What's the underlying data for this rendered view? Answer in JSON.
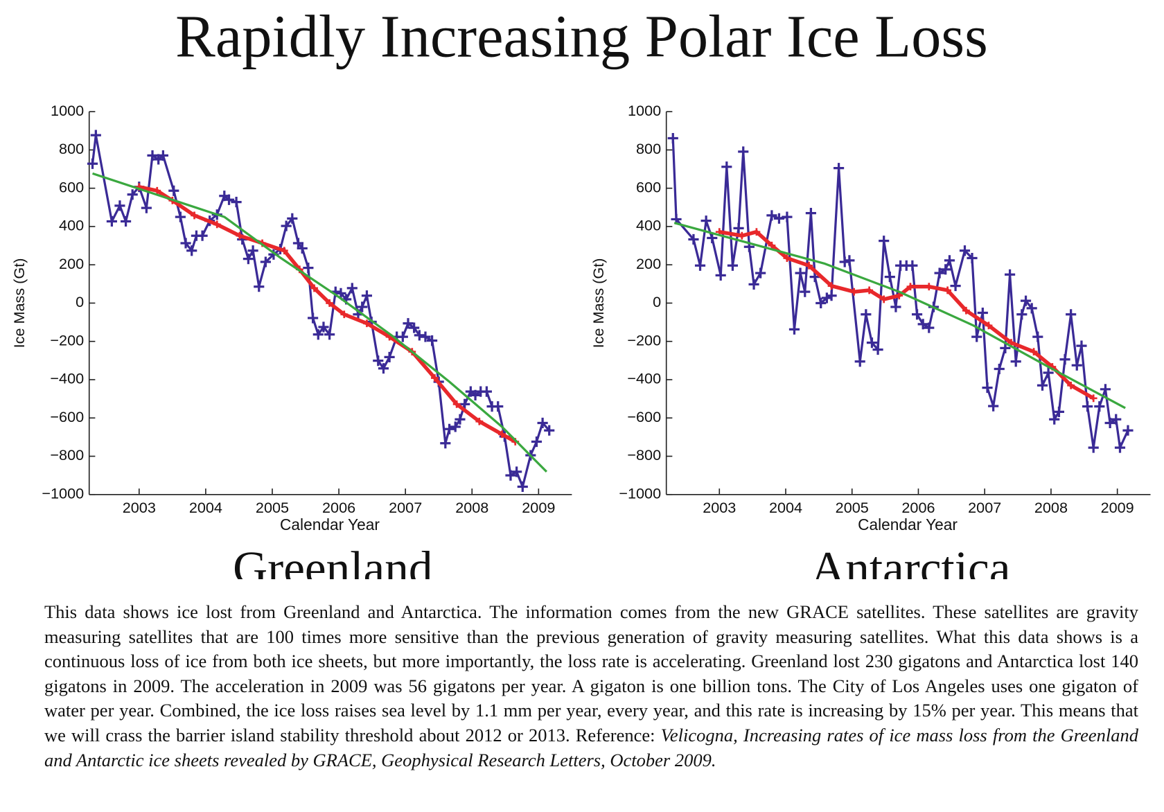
{
  "title": "Rapidly Increasing Polar Ice Loss",
  "chart_data": [
    {
      "type": "line",
      "title": "Greenland",
      "xlabel": "Calendar Year",
      "ylabel": "Ice Mass (Gt)",
      "xlim": [
        2002.25,
        2009.5
      ],
      "ylim": [
        -1000,
        1000
      ],
      "xticks": [
        2003,
        2004,
        2005,
        2006,
        2007,
        2008,
        2009
      ],
      "yticks": [
        {
          "value": -1000,
          "label": "−1000"
        },
        {
          "value": -800,
          "label": "−800"
        },
        {
          "value": -600,
          "label": "−600"
        },
        {
          "value": -400,
          "label": "−400"
        },
        {
          "value": -200,
          "label": "−200"
        },
        0,
        200,
        400,
        600,
        800,
        1000
      ],
      "series": [
        {
          "color": "#3a2a96",
          "marker": "plus",
          "x": [
            2002.3,
            2002.35,
            2002.59,
            2002.71,
            2002.8,
            2002.9,
            2003.0,
            2003.11,
            2003.2,
            2003.29,
            2003.36,
            2003.52,
            2003.62,
            2003.7,
            2003.79,
            2003.86,
            2003.95,
            2004.06,
            2004.17,
            2004.28,
            2004.35,
            2004.46,
            2004.55,
            2004.64,
            2004.71,
            2004.8,
            2004.9,
            2005.02,
            2005.12,
            2005.21,
            2005.3,
            2005.39,
            2005.45,
            2005.54,
            2005.61,
            2005.69,
            2005.77,
            2005.86,
            2005.95,
            2006.03,
            2006.11,
            2006.2,
            2006.29,
            2006.35,
            2006.42,
            2006.49,
            2006.59,
            2006.67,
            2006.76,
            2006.87,
            2006.96,
            2007.04,
            2007.13,
            2007.21,
            2007.3,
            2007.4,
            2007.5,
            2007.6,
            2007.66,
            2007.75,
            2007.82,
            2007.89,
            2007.98,
            2008.05,
            2008.13,
            2008.22,
            2008.3,
            2008.39,
            2008.49,
            2008.58,
            2008.67,
            2008.76,
            2008.88,
            2008.97,
            2009.06,
            2009.16
          ],
          "values": [
            728,
            877,
            427,
            509,
            427,
            567,
            607,
            497,
            771,
            751,
            771,
            587,
            450,
            313,
            274,
            352,
            352,
            430,
            462,
            560,
            540,
            528,
            333,
            231,
            274,
            86,
            215,
            254,
            282,
            403,
            442,
            313,
            286,
            184,
            -78,
            -164,
            -125,
            -164,
            59,
            51,
            20,
            78,
            -59,
            -20,
            39,
            -98,
            -301,
            -341,
            -282,
            -176,
            -176,
            -106,
            -129,
            -168,
            -176,
            -196,
            -411,
            -732,
            -658,
            -646,
            -607,
            -528,
            -462,
            -481,
            -462,
            -462,
            -540,
            -540,
            -697,
            -900,
            -881,
            -959,
            -795,
            -724,
            -626,
            -665
          ]
        },
        {
          "color": "#e8282b",
          "marker": "plus",
          "x": [
            2003.0,
            2003.27,
            2003.5,
            2003.83,
            2004.17,
            2004.51,
            2004.85,
            2005.18,
            2005.41,
            2005.63,
            2005.86,
            2006.08,
            2006.42,
            2006.76,
            2007.1,
            2007.44,
            2007.77,
            2008.11,
            2008.45,
            2008.65
          ],
          "values": [
            607,
            587,
            536,
            458,
            411,
            352,
            313,
            274,
            176,
            78,
            0,
            -59,
            -106,
            -176,
            -254,
            -391,
            -528,
            -618,
            -685,
            -724
          ]
        },
        {
          "color": "#3aa83f",
          "x": [
            2002.3,
            2004.28,
            2005.13,
            2005.97,
            2006.82,
            2007.66,
            2008.45,
            2009.12
          ],
          "values": [
            677,
            450,
            235,
            39,
            -176,
            -411,
            -646,
            -881
          ]
        }
      ]
    },
    {
      "type": "line",
      "title": "Antarctica",
      "xlabel": "Calendar Year",
      "ylabel": "Ice Mass (Gt)",
      "xlim": [
        2002.2,
        2009.5
      ],
      "ylim": [
        -1000,
        1000
      ],
      "xticks": [
        2003,
        2004,
        2005,
        2006,
        2007,
        2008,
        2009
      ],
      "yticks": [
        {
          "value": -1000,
          "label": "−1000"
        },
        {
          "value": -800,
          "label": "−800"
        },
        {
          "value": -600,
          "label": "−600"
        },
        {
          "value": -400,
          "label": "−400"
        },
        {
          "value": -200,
          "label": "−200"
        },
        0,
        200,
        400,
        600,
        800,
        1000
      ],
      "series": [
        {
          "color": "#3a2a96",
          "marker": "plus",
          "x": [
            2002.3,
            2002.35,
            2002.61,
            2002.71,
            2002.8,
            2002.89,
            2003.02,
            2003.11,
            2003.2,
            2003.29,
            2003.36,
            2003.45,
            2003.52,
            2003.62,
            2003.79,
            2003.9,
            2004.02,
            2004.13,
            2004.22,
            2004.29,
            2004.38,
            2004.44,
            2004.53,
            2004.62,
            2004.69,
            2004.8,
            2004.89,
            2004.96,
            2005.12,
            2005.21,
            2005.3,
            2005.39,
            2005.48,
            2005.57,
            2005.66,
            2005.73,
            2005.82,
            2005.91,
            2005.98,
            2006.07,
            2006.16,
            2006.23,
            2006.32,
            2006.41,
            2006.47,
            2006.56,
            2006.7,
            2006.81,
            2006.88,
            2006.97,
            2007.04,
            2007.13,
            2007.22,
            2007.31,
            2007.38,
            2007.47,
            2007.56,
            2007.62,
            2007.71,
            2007.8,
            2007.87,
            2007.96,
            2008.05,
            2008.12,
            2008.21,
            2008.3,
            2008.39,
            2008.46,
            2008.55,
            2008.64,
            2008.73,
            2008.82,
            2008.89,
            2008.98,
            2009.04,
            2009.16
          ],
          "values": [
            861,
            438,
            333,
            196,
            430,
            340,
            145,
            712,
            196,
            391,
            791,
            294,
            98,
            157,
            458,
            442,
            450,
            -137,
            157,
            59,
            470,
            137,
            0,
            27,
            39,
            705,
            215,
            223,
            -305,
            -59,
            -207,
            -243,
            325,
            137,
            -20,
            196,
            196,
            196,
            -59,
            -110,
            -129,
            -20,
            157,
            176,
            223,
            90,
            274,
            235,
            -176,
            -51,
            -442,
            -538,
            -344,
            -235,
            149,
            -305,
            -59,
            12,
            -27,
            -176,
            -430,
            -364,
            -607,
            -568,
            -294,
            -59,
            -325,
            -223,
            -540,
            -755,
            -540,
            -450,
            -626,
            -607,
            -755,
            -665
          ]
        },
        {
          "color": "#e8282b",
          "marker": "plus",
          "x": [
            2003.0,
            2003.34,
            2003.56,
            2003.79,
            2004.02,
            2004.35,
            2004.69,
            2005.03,
            2005.26,
            2005.48,
            2005.71,
            2005.88,
            2006.16,
            2006.44,
            2006.72,
            2007.06,
            2007.4,
            2007.74,
            2008.02,
            2008.3,
            2008.64
          ],
          "values": [
            372,
            352,
            372,
            301,
            235,
            196,
            90,
            59,
            67,
            20,
            39,
            86,
            86,
            67,
            -39,
            -117,
            -207,
            -254,
            -333,
            -430,
            -497
          ]
        },
        {
          "color": "#3aa83f",
          "x": [
            2002.32,
            2003.45,
            2004.58,
            2005.71,
            2006.83,
            2007.96,
            2009.12
          ],
          "values": [
            419,
            313,
            207,
            59,
            -117,
            -333,
            -548
          ]
        }
      ]
    }
  ],
  "caption": {
    "text": "This data shows ice lost from Greenland and Antarctica. The information comes from the new GRACE satellites. These satellites are gravity measuring satellites that are 100 times more sensitive than the previous generation of gravity measuring satellites.  What this data shows is a continuous loss of ice from both ice sheets, but more importantly, the loss rate is accelerating.  Greenland lost 230 gigatons and Antarctica lost 140 gigatons in 2009.  The acceleration in 2009 was 56 gigatons per year. A gigaton is one billion tons. The City of Los Angeles uses one gigaton of water per year. Combined, the ice loss raises sea level by 1.1 mm per year, every year, and this rate is increasing by 15% per year. This means that we will crass the barrier island stability threshold about 2012 or 2013.  Reference:",
    "reference": "Velicogna, Increasing rates of ice mass loss from the Greenland and Antarctic ice sheets revealed by GRACE, Geophysical Research Letters, October 2009."
  }
}
